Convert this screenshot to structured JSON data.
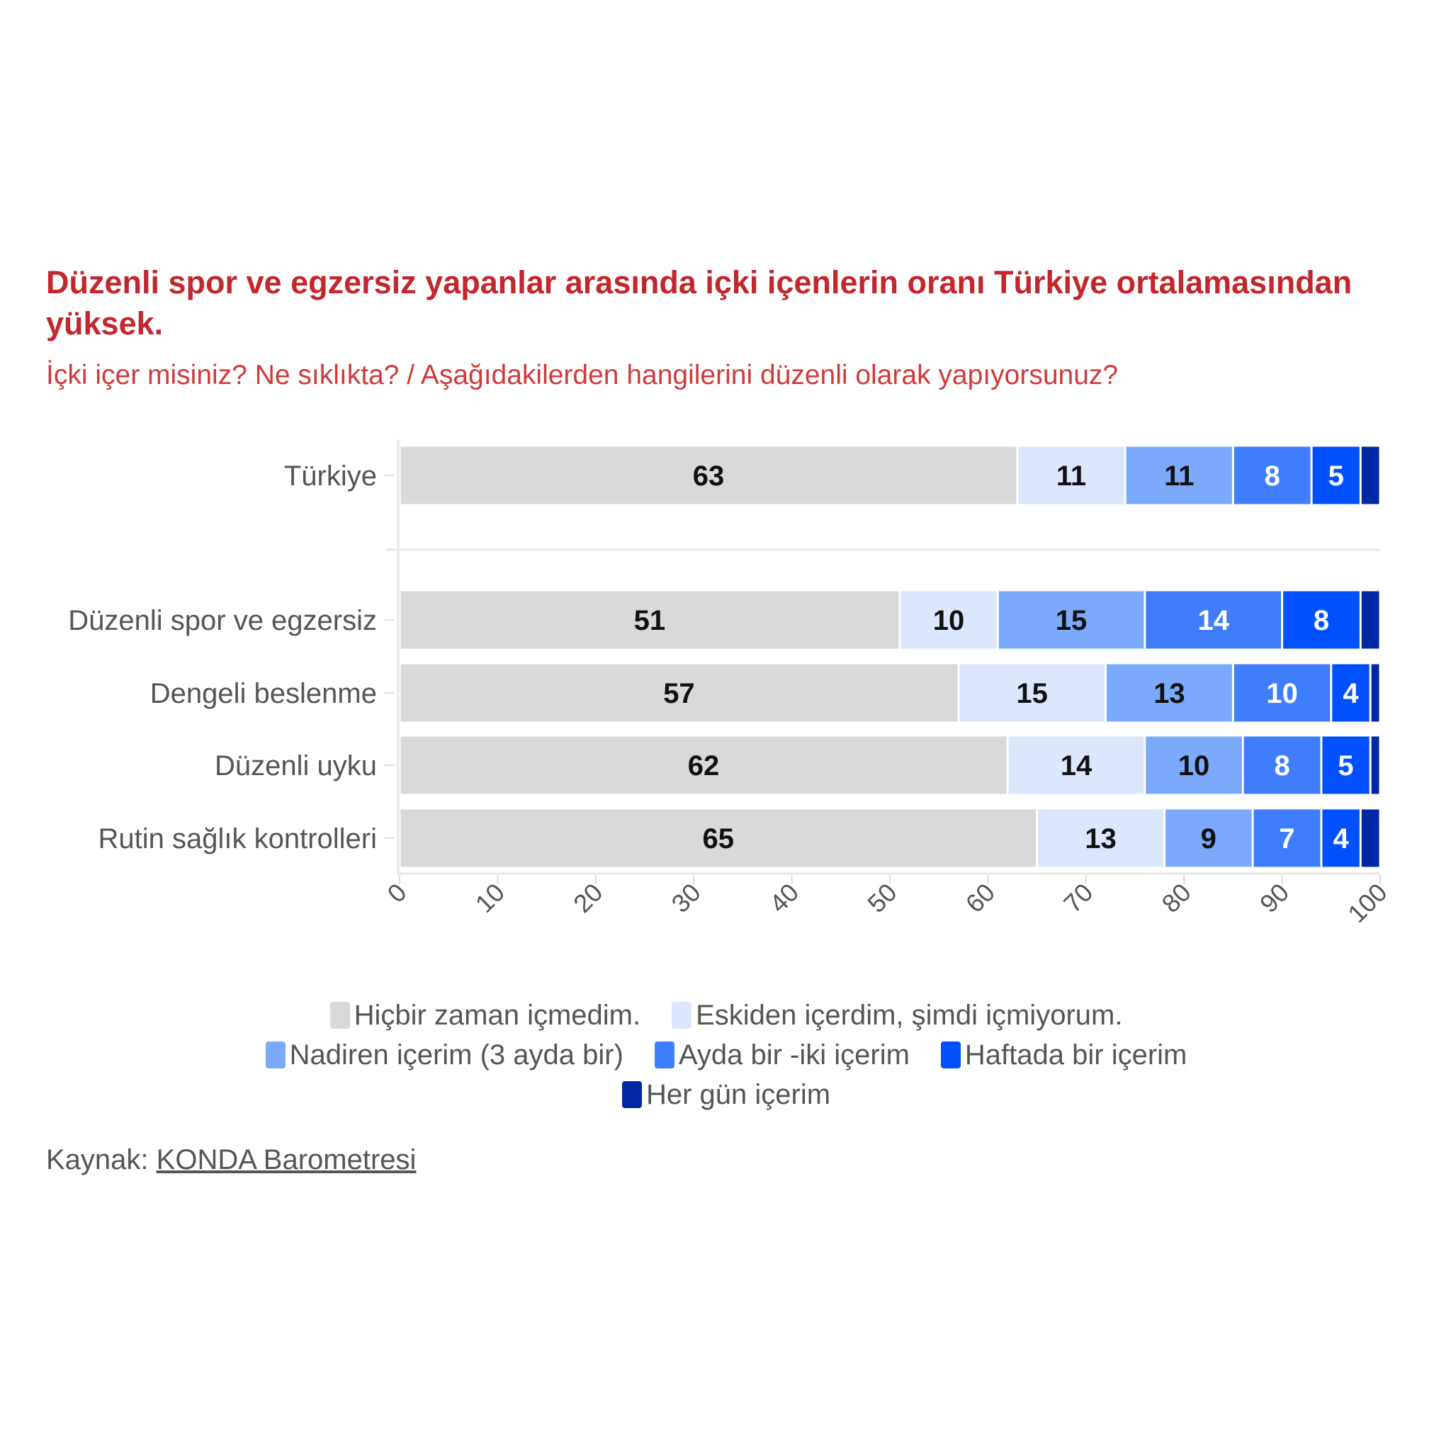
{
  "chart_data": {
    "type": "bar",
    "orientation": "horizontal-stacked",
    "title": "Düzenli spor ve egzersiz yapanlar arasında içki içenlerin oranı Türkiye ortalamasından yüksek.",
    "subtitle": "İçki içer misiniz? Ne sıklıkta? / Aşağıdakilerden hangilerini düzenli olarak yapıyorsunuz?",
    "categories": [
      "Türkiye",
      "Düzenli spor ve egzersiz",
      "Dengeli beslenme",
      "Düzenli uyku",
      "Rutin sağlık kontrolleri"
    ],
    "series": [
      {
        "name": "Hiçbir zaman içmedim.",
        "color": "#d9d9d9",
        "values": [
          63,
          51,
          57,
          62,
          65
        ]
      },
      {
        "name": "Eskiden içerdim, şimdi içmiyorum.",
        "color": "#dce7fd",
        "values": [
          11,
          10,
          15,
          14,
          13
        ]
      },
      {
        "name": "Nadiren içerim (3 ayda bir)",
        "color": "#7ba9fb",
        "values": [
          11,
          15,
          13,
          10,
          9
        ]
      },
      {
        "name": "Ayda bir -iki içerim",
        "color": "#3f7dfc",
        "values": [
          8,
          14,
          10,
          8,
          7
        ]
      },
      {
        "name": "Haftada bir içerim",
        "color": "#0050fe",
        "values": [
          5,
          8,
          4,
          5,
          4
        ]
      },
      {
        "name": "Her gün içerim",
        "color": "#0028a5",
        "values": [
          2,
          2,
          1,
          1,
          2
        ]
      }
    ],
    "xlim": [
      0,
      100
    ],
    "xticks": [
      0,
      10,
      20,
      30,
      40,
      50,
      60,
      70,
      80,
      90,
      100
    ],
    "legend_position": "bottom",
    "grid": false
  },
  "source": {
    "label": "Kaynak:",
    "link": "KONDA Barometresi"
  }
}
